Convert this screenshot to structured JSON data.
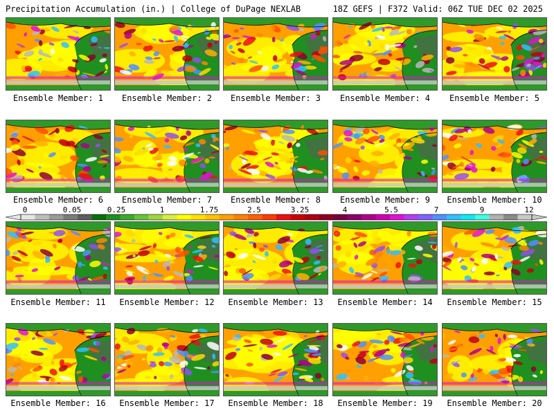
{
  "header": {
    "title_left": "Precipitation Accumulation (in.) | College of DuPage NEXLAB",
    "title_right": "18Z GEFS | F372 Valid: 06Z TUE DEC 02 2025"
  },
  "member_label_prefix": "Ensemble Member: ",
  "members": [
    1,
    2,
    3,
    4,
    5,
    6,
    7,
    8,
    9,
    10,
    11,
    12,
    13,
    14,
    15,
    16,
    17,
    18,
    19,
    20
  ],
  "colorbar": {
    "labels": [
      "0",
      "0.05",
      "0.25",
      "1",
      "1.75",
      "2.5",
      "3.25",
      "4",
      "5.5",
      "7",
      "9",
      "12"
    ],
    "colors": [
      "#e6e6e6",
      "#bdbdbd",
      "#9a9a9a",
      "#7a7a7a",
      "#5e5e5e",
      "#0a6e0a",
      "#1f8f1f",
      "#3aaa2a",
      "#68c23a",
      "#9fd63f",
      "#d8ee3a",
      "#ffff00",
      "#ffe000",
      "#ffc000",
      "#ffa000",
      "#ff8000",
      "#ff6000",
      "#ff3c00",
      "#ee1010",
      "#d00000",
      "#b00010",
      "#900020",
      "#780040",
      "#8c0068",
      "#b0008c",
      "#d000b0",
      "#e010d8",
      "#b040f0",
      "#8060ff",
      "#5090ff",
      "#30c0ff",
      "#10e8f0",
      "#40ffe0",
      "#b0b0b0",
      "#8a8a8a",
      "#c8c8c8"
    ]
  },
  "palette": {
    "background": "#ffffff",
    "ocean_base": "#ffa000",
    "land_base": "#1f8f1f"
  }
}
